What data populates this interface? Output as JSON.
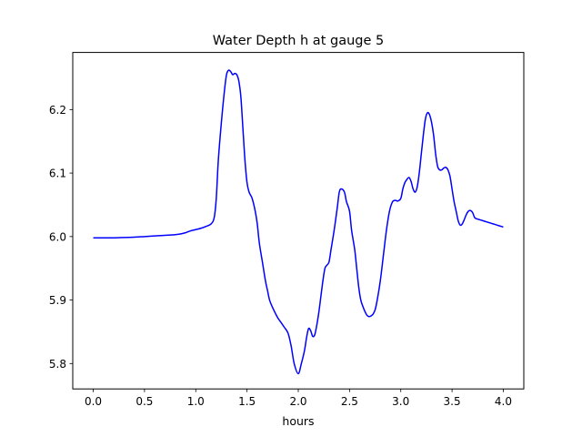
{
  "chart_data": {
    "type": "line",
    "title": "Water Depth h at gauge 5",
    "xlabel": "hours",
    "ylabel": "",
    "xlim": [
      -0.2,
      4.2
    ],
    "ylim": [
      5.76,
      6.29
    ],
    "x_ticks": [
      0.0,
      0.5,
      1.0,
      1.5,
      2.0,
      2.5,
      3.0,
      3.5,
      4.0
    ],
    "x_tick_labels": [
      "0.0",
      "0.5",
      "1.0",
      "1.5",
      "2.0",
      "2.5",
      "3.0",
      "3.5",
      "4.0"
    ],
    "y_ticks": [
      5.8,
      5.9,
      6.0,
      6.1,
      6.2
    ],
    "y_tick_labels": [
      "5.8",
      "5.9",
      "6.0",
      "6.1",
      "6.2"
    ],
    "grid": false,
    "series": [
      {
        "color": "#0000ff",
        "x": [
          0.0,
          0.2,
          0.4,
          0.5,
          0.6,
          0.7,
          0.8,
          0.85,
          0.9,
          0.95,
          1.0,
          1.05,
          1.1,
          1.15,
          1.18,
          1.2,
          1.22,
          1.25,
          1.28,
          1.3,
          1.32,
          1.34,
          1.36,
          1.38,
          1.4,
          1.42,
          1.44,
          1.46,
          1.48,
          1.5,
          1.52,
          1.55,
          1.58,
          1.6,
          1.62,
          1.65,
          1.68,
          1.7,
          1.72,
          1.75,
          1.78,
          1.8,
          1.83,
          1.86,
          1.9,
          1.93,
          1.96,
          2.0,
          2.03,
          2.06,
          2.08,
          2.1,
          2.12,
          2.14,
          2.16,
          2.18,
          2.2,
          2.22,
          2.24,
          2.26,
          2.28,
          2.3,
          2.32,
          2.35,
          2.38,
          2.4,
          2.42,
          2.45,
          2.47,
          2.5,
          2.52,
          2.55,
          2.57,
          2.59,
          2.61,
          2.63,
          2.65,
          2.67,
          2.69,
          2.71,
          2.73,
          2.75,
          2.77,
          2.8,
          2.83,
          2.86,
          2.89,
          2.92,
          2.95,
          2.97,
          3.0,
          3.02,
          3.04,
          3.06,
          3.08,
          3.1,
          3.12,
          3.14,
          3.16,
          3.18,
          3.2,
          3.22,
          3.24,
          3.26,
          3.28,
          3.3,
          3.32,
          3.34,
          3.36,
          3.38,
          3.4,
          3.42,
          3.44,
          3.46,
          3.48,
          3.5,
          3.52,
          3.54,
          3.56,
          3.58,
          3.6,
          3.62,
          3.64,
          3.66,
          3.68,
          3.7,
          3.72,
          3.74,
          3.76,
          3.78,
          3.8,
          3.82,
          3.84,
          3.86,
          3.88,
          3.9,
          3.92,
          3.94,
          3.96,
          3.98,
          4.0
        ],
        "y": [
          5.998,
          5.998,
          5.999,
          6.0,
          6.001,
          6.002,
          6.003,
          6.004,
          6.006,
          6.009,
          6.011,
          6.013,
          6.016,
          6.02,
          6.03,
          6.06,
          6.12,
          6.18,
          6.23,
          6.255,
          6.262,
          6.26,
          6.255,
          6.257,
          6.255,
          6.245,
          6.22,
          6.17,
          6.12,
          6.085,
          6.07,
          6.06,
          6.04,
          6.02,
          5.99,
          5.96,
          5.93,
          5.915,
          5.9,
          5.888,
          5.878,
          5.872,
          5.865,
          5.858,
          5.848,
          5.828,
          5.8,
          5.784,
          5.8,
          5.82,
          5.84,
          5.855,
          5.852,
          5.843,
          5.845,
          5.86,
          5.88,
          5.905,
          5.93,
          5.95,
          5.955,
          5.96,
          5.98,
          6.01,
          6.045,
          6.07,
          6.075,
          6.07,
          6.055,
          6.04,
          6.01,
          5.98,
          5.95,
          5.92,
          5.9,
          5.89,
          5.882,
          5.876,
          5.874,
          5.875,
          5.878,
          5.885,
          5.9,
          5.93,
          5.97,
          6.01,
          6.04,
          6.055,
          6.057,
          6.056,
          6.06,
          6.075,
          6.085,
          6.09,
          6.093,
          6.087,
          6.075,
          6.07,
          6.078,
          6.1,
          6.13,
          6.16,
          6.185,
          6.195,
          6.192,
          6.18,
          6.16,
          6.13,
          6.11,
          6.105,
          6.105,
          6.108,
          6.109,
          6.105,
          6.095,
          6.075,
          6.055,
          6.04,
          6.025,
          6.018,
          6.02,
          6.027,
          6.035,
          6.04,
          6.041,
          6.038,
          6.03,
          6.028,
          6.027,
          6.026,
          6.025,
          6.024,
          6.023,
          6.022,
          6.021,
          6.02,
          6.019,
          6.018,
          6.017,
          6.016,
          6.015
        ]
      }
    ]
  }
}
